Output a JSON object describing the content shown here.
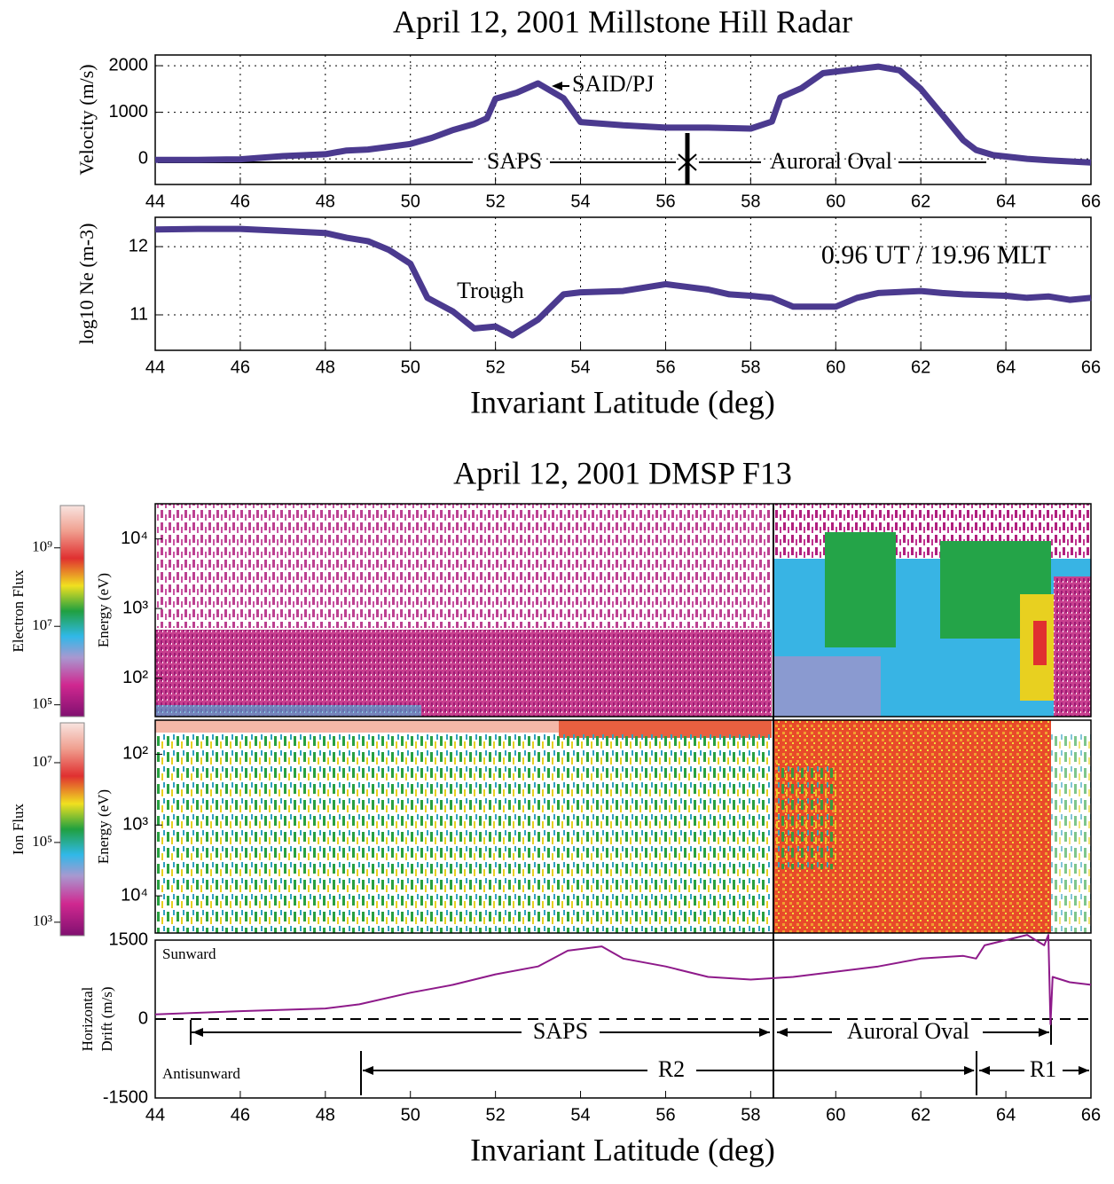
{
  "chart_data": [
    {
      "type": "line",
      "title": "April 12, 2001   Millstone Hill Radar",
      "ylabel": "Velocity (m/s)",
      "x": [
        44,
        45,
        46,
        47,
        48,
        48.5,
        49,
        49.5,
        50,
        50.5,
        51,
        51.5,
        51.8,
        52,
        52.5,
        53,
        53.6,
        54,
        55,
        56,
        57,
        58,
        58.5,
        58.7,
        59.2,
        59.7,
        60.5,
        61,
        61.5,
        62,
        62.5,
        63,
        63.3,
        63.7,
        64.5,
        65,
        66
      ],
      "values": [
        -20,
        -20,
        -10,
        60,
        100,
        180,
        200,
        260,
        320,
        450,
        620,
        750,
        870,
        1290,
        1420,
        1620,
        1300,
        790,
        720,
        670,
        670,
        650,
        800,
        1320,
        1520,
        1840,
        1930,
        1980,
        1900,
        1500,
        950,
        400,
        190,
        80,
        0,
        -30,
        -80
      ],
      "color": "#4b3a8f",
      "xlim": [
        44,
        66
      ],
      "xticks": [
        44,
        46,
        48,
        50,
        52,
        54,
        56,
        58,
        60,
        62,
        64,
        66
      ],
      "ylim": [
        -550,
        2230
      ],
      "yticks": [
        0,
        1000,
        2000
      ],
      "grid": true,
      "annotations": [
        "SAID/PJ",
        "SAPS",
        "Auroral Oval"
      ]
    },
    {
      "type": "line",
      "ylabel": "log10 Ne (m-3)",
      "xlabel": "Invariant Latitude (deg)",
      "x": [
        44,
        45,
        46,
        47,
        48,
        48.5,
        49,
        49.5,
        50,
        50.4,
        51,
        51.5,
        52,
        52.4,
        53,
        53.6,
        54,
        55,
        56,
        57,
        57.5,
        58,
        58.5,
        59,
        60,
        60.5,
        61,
        62,
        62.5,
        63,
        64,
        64.5,
        65,
        65.5,
        66
      ],
      "values": [
        12.25,
        12.26,
        12.26,
        12.23,
        12.2,
        12.13,
        12.08,
        11.95,
        11.75,
        11.25,
        11.05,
        10.8,
        10.83,
        10.7,
        10.93,
        11.3,
        11.33,
        11.35,
        11.45,
        11.37,
        11.3,
        11.28,
        11.25,
        11.12,
        11.12,
        11.25,
        11.32,
        11.35,
        11.32,
        11.3,
        11.28,
        11.25,
        11.27,
        11.22,
        11.25
      ],
      "color": "#4b3a8f",
      "xlim": [
        44,
        66
      ],
      "xticks": [
        44,
        46,
        48,
        50,
        52,
        54,
        56,
        58,
        60,
        62,
        64,
        66
      ],
      "ylim": [
        10.48,
        12.43
      ],
      "yticks": [
        11,
        12
      ],
      "grid": true,
      "annotations": [
        "Trough",
        "0.96 UT / 19.96 MLT"
      ]
    },
    {
      "type": "spectrogram",
      "title": "April 12, 2001   DMSP F13",
      "ylabel": "Energy (eV)",
      "colorbar_label": "Electron Flux",
      "log_y": true,
      "ylim": [
        28,
        32000
      ],
      "yticks": [
        {
          "value": 100,
          "label": "10²"
        },
        {
          "value": 1000,
          "label": "10³"
        },
        {
          "value": 10000,
          "label": "10⁴"
        }
      ],
      "clim": [
        50000,
        12000000000
      ],
      "cticks": [
        {
          "value": 100000,
          "label": "10⁵"
        },
        {
          "value": 10000000,
          "label": "10⁷"
        },
        {
          "value": 1000000000,
          "label": "10⁹"
        }
      ]
    },
    {
      "type": "spectrogram",
      "ylabel": "Energy (eV)",
      "colorbar_label": "Ion Flux",
      "log_y": true,
      "ylim": [
        33500,
        33
      ],
      "yticks": [
        {
          "value": 100,
          "label": "10²"
        },
        {
          "value": 1000,
          "label": "10³"
        },
        {
          "value": 10000,
          "label": "10⁴"
        }
      ],
      "clim": [
        460,
        100000000
      ],
      "cticks": [
        {
          "value": 1000,
          "label": "10³"
        },
        {
          "value": 100000,
          "label": "10⁵"
        },
        {
          "value": 10000000,
          "label": "10⁷"
        }
      ]
    },
    {
      "type": "line",
      "ylabel": [
        "Horizontal",
        "Drift (m/s)"
      ],
      "xlabel": "Invariant Latitude (deg)",
      "x": [
        44,
        46,
        48,
        48.8,
        50,
        51,
        52,
        53,
        53.7,
        54.5,
        55,
        56,
        57,
        58,
        59,
        60,
        61,
        62,
        63,
        63.3,
        63.5,
        64,
        64.5,
        64.9,
        65,
        65.05,
        65.1,
        65.5,
        66
      ],
      "values": [
        90,
        150,
        200,
        280,
        500,
        650,
        850,
        1000,
        1300,
        1380,
        1150,
        1000,
        800,
        750,
        800,
        900,
        1000,
        1150,
        1200,
        1150,
        1400,
        1500,
        1600,
        1400,
        1600,
        -100,
        800,
        700,
        650
      ],
      "color": "#8e1a8a",
      "xlim": [
        44,
        66
      ],
      "xticks": [
        44,
        46,
        48,
        50,
        52,
        54,
        56,
        58,
        60,
        62,
        64,
        66
      ],
      "ylim": [
        -1500,
        1500
      ],
      "yticks": [
        -1500,
        0,
        1500
      ],
      "grid": false,
      "annotations": [
        "Sunward",
        "Antisunward",
        "SAPS",
        "Auroral Oval",
        "R2",
        "R1"
      ]
    }
  ]
}
